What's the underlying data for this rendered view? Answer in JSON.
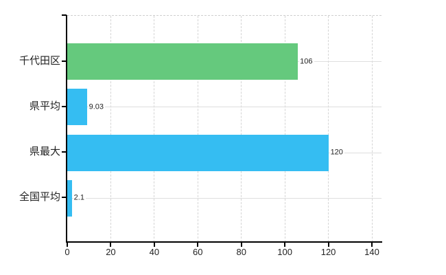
{
  "chart": {
    "background": "#ffffff",
    "axis_color": "#000000",
    "vertical_grid_color": "#d4d4d4",
    "horizontal_grid_color": "#dedede",
    "text_color": "#222222",
    "green_accent": "#65c97d",
    "blue_accent": "#35bdf2"
  },
  "chart_data": {
    "type": "bar",
    "orientation": "horizontal",
    "title": "",
    "xlabel": "",
    "ylabel": "",
    "categories": [
      "千代田区",
      "県平均",
      "県最大",
      "全国平均"
    ],
    "values": [
      106,
      9.03,
      120,
      2.1
    ],
    "value_labels": [
      "106",
      "9.03",
      "120",
      "2.1"
    ],
    "bar_colors": [
      "#65c97d",
      "#35bdf2",
      "#35bdf2",
      "#35bdf2"
    ],
    "xlim": [
      0,
      140
    ],
    "x_ticks": [
      0,
      20,
      40,
      60,
      80,
      100,
      120,
      140
    ],
    "x_tick_labels": [
      "0",
      "20",
      "40",
      "60",
      "80",
      "100",
      "120",
      "140"
    ],
    "grid": true,
    "legend": false
  }
}
